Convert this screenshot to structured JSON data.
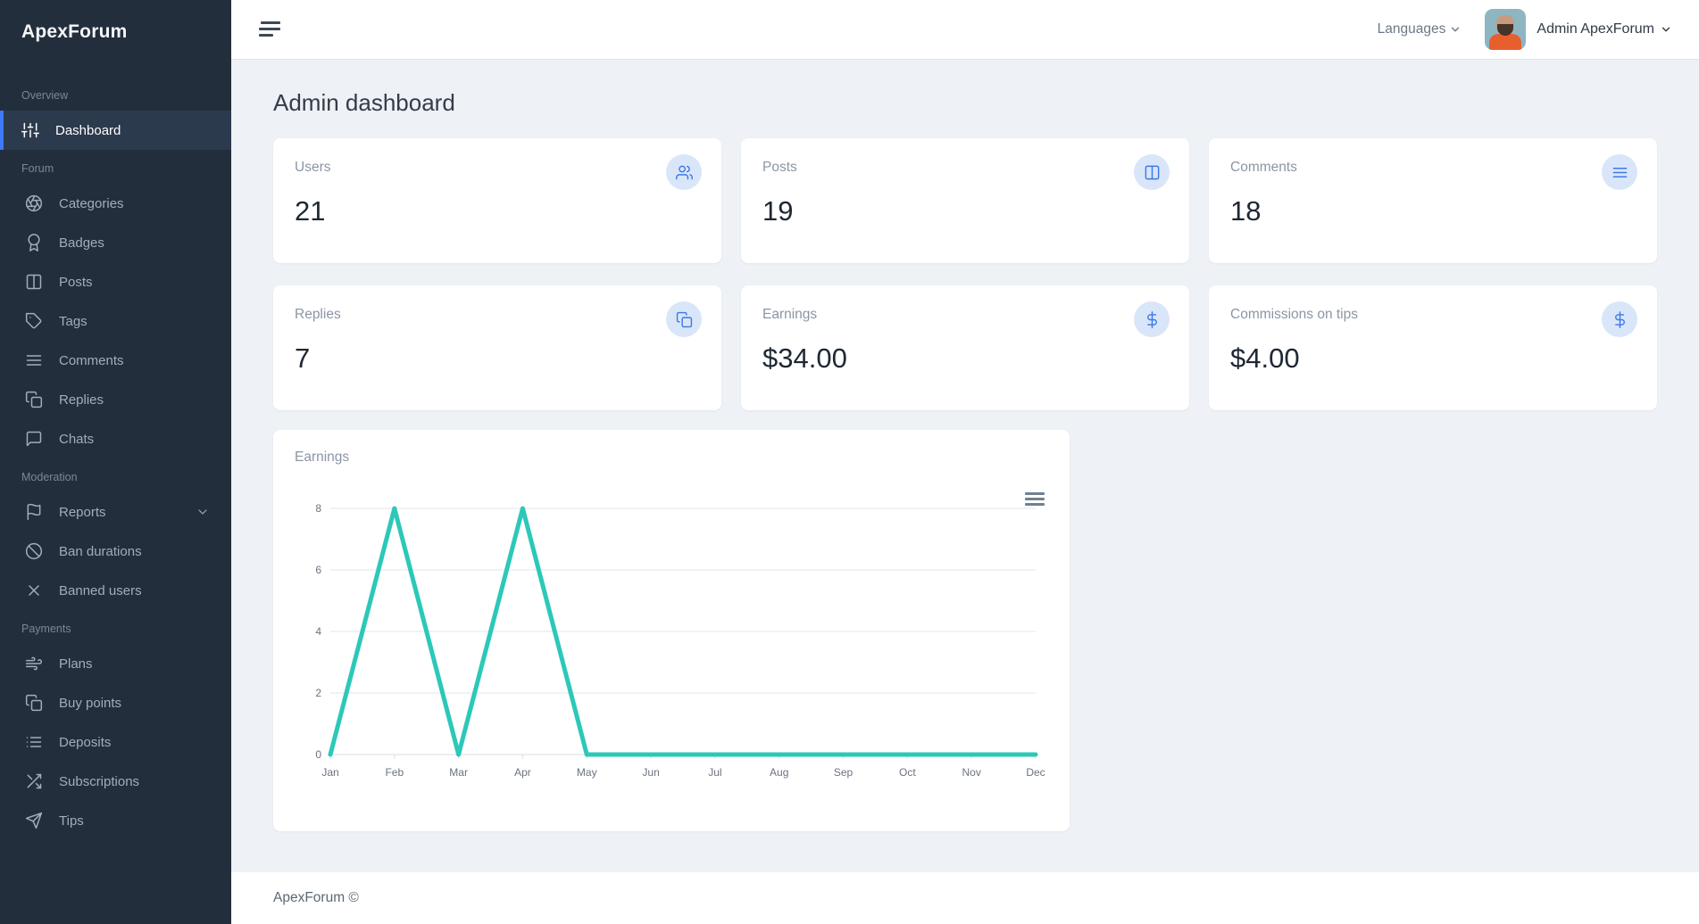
{
  "app": {
    "name": "ApexForum",
    "footer_text": "ApexForum ©"
  },
  "topbar": {
    "menu_icon": "hamburger-menu-icon",
    "languages_label": "Languages",
    "user_label": "Admin ApexForum",
    "avatar": "user-avatar-photo"
  },
  "page": {
    "title": "Admin dashboard"
  },
  "sidebar": {
    "sections": [
      {
        "label": "Overview",
        "items": [
          {
            "label": "Dashboard",
            "icon": "sliders-icon",
            "active": true
          }
        ]
      },
      {
        "label": "Forum",
        "items": [
          {
            "label": "Categories",
            "icon": "aperture-icon"
          },
          {
            "label": "Badges",
            "icon": "award-icon"
          },
          {
            "label": "Posts",
            "icon": "columns-icon"
          },
          {
            "label": "Tags",
            "icon": "tag-icon"
          },
          {
            "label": "Comments",
            "icon": "menu-lines-icon"
          },
          {
            "label": "Replies",
            "icon": "copy-icon"
          },
          {
            "label": "Chats",
            "icon": "message-square-icon"
          }
        ]
      },
      {
        "label": "Moderation",
        "items": [
          {
            "label": "Reports",
            "icon": "flag-icon",
            "expandable": true
          },
          {
            "label": "Ban durations",
            "icon": "slash-icon"
          },
          {
            "label": "Banned users",
            "icon": "x-icon"
          }
        ]
      },
      {
        "label": "Payments",
        "items": [
          {
            "label": "Plans",
            "icon": "wind-icon"
          },
          {
            "label": "Buy points",
            "icon": "copy-icon"
          },
          {
            "label": "Deposits",
            "icon": "list-icon"
          },
          {
            "label": "Subscriptions",
            "icon": "shuffle-icon"
          },
          {
            "label": "Tips",
            "icon": "send-icon"
          }
        ]
      }
    ]
  },
  "cards": [
    {
      "label": "Users",
      "value": "21",
      "icon": "users-icon"
    },
    {
      "label": "Posts",
      "value": "19",
      "icon": "columns-icon"
    },
    {
      "label": "Comments",
      "value": "18",
      "icon": "menu-lines-icon"
    },
    {
      "label": "Replies",
      "value": "7",
      "icon": "copy-icon"
    },
    {
      "label": "Earnings",
      "value": "$34.00",
      "icon": "dollar-icon"
    },
    {
      "label": "Commissions on tips",
      "value": "$4.00",
      "icon": "dollar-icon"
    }
  ],
  "chart_data": {
    "type": "line",
    "title": "Earnings",
    "x": [
      "Jan",
      "Feb",
      "Mar",
      "Apr",
      "May",
      "Jun",
      "Jul",
      "Aug",
      "Sep",
      "Oct",
      "Nov",
      "Dec"
    ],
    "series": [
      {
        "name": "Earnings",
        "values": [
          0,
          8,
          0,
          8,
          0,
          0,
          0,
          0,
          0,
          0,
          0,
          0
        ]
      }
    ],
    "ylim": [
      0,
      8
    ],
    "yticks": [
      0,
      2,
      4,
      6,
      8
    ],
    "grid": true,
    "legend_position": "none",
    "line_color": "#2cc8b8"
  },
  "colors": {
    "sidebar_bg": "#232e3c",
    "sidebar_active_bg": "#2c3a4d",
    "accent_blue": "#3e7bfa",
    "icon_bubble_bg": "#d9e6f9",
    "icon_blue": "#3c79e6",
    "chart_line": "#2cc8b8",
    "content_bg": "#eef1f5"
  }
}
